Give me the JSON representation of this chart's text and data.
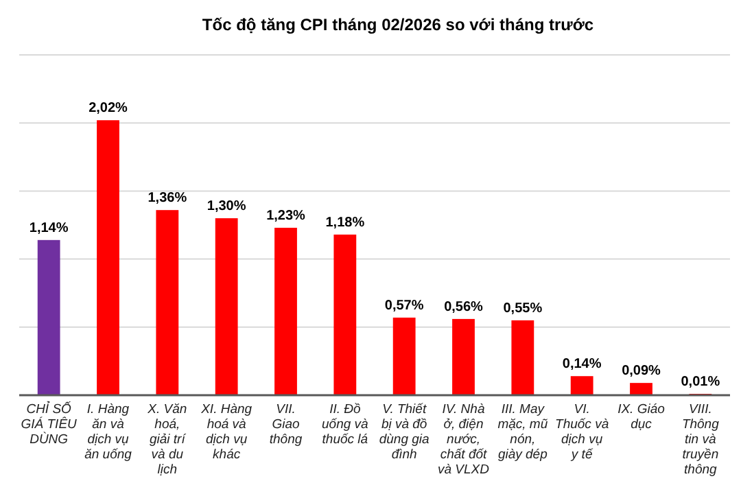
{
  "chart_data": {
    "type": "bar",
    "title": "Tốc độ tăng CPI tháng 02/2026 so với tháng trước",
    "categories": [
      "CHỈ SỐ GIÁ TIÊU DÙNG",
      "I. Hàng ăn và dịch vụ ăn uống",
      "X. Văn hoá, giải trí và du lịch",
      "XI. Hàng hoá và dịch vụ khác",
      "VII. Giao thông",
      "II. Đồ uống và thuốc lá",
      "V. Thiết bị và đồ dùng gia đình",
      "IV. Nhà ở, điện nước, chất đốt và VLXD",
      "III. May mặc, mũ nón, giày dép",
      "VI. Thuốc và dịch vụ y tế",
      "IX. Giáo dục",
      "VIII. Thông tin và truyền thông"
    ],
    "values": [
      1.14,
      2.02,
      1.36,
      1.3,
      1.23,
      1.18,
      0.57,
      0.56,
      0.55,
      0.14,
      0.09,
      0.01
    ],
    "colors": [
      "#7030a0",
      "#ff0000",
      "#ff0000",
      "#ff0000",
      "#ff0000",
      "#ff0000",
      "#ff0000",
      "#ff0000",
      "#ff0000",
      "#ff0000",
      "#ff0000",
      "#ff0000"
    ],
    "value_labels": [
      "1,14%",
      "2,02%",
      "1,36%",
      "1,30%",
      "1,23%",
      "1,18%",
      "0,57%",
      "0,56%",
      "0,55%",
      "0,14%",
      "0,09%",
      "0,01%"
    ],
    "ylim": [
      0,
      2.5
    ],
    "yticks": [
      {
        "value": 0,
        "label": null
      },
      {
        "value": 0.5,
        "label": null
      },
      {
        "value": 1,
        "label": null
      },
      {
        "value": 1.5,
        "label": null
      },
      {
        "value": 2,
        "label": null
      },
      {
        "value": 2.5,
        "label": null
      }
    ],
    "grid": "y",
    "tick_labels": "x"
  }
}
